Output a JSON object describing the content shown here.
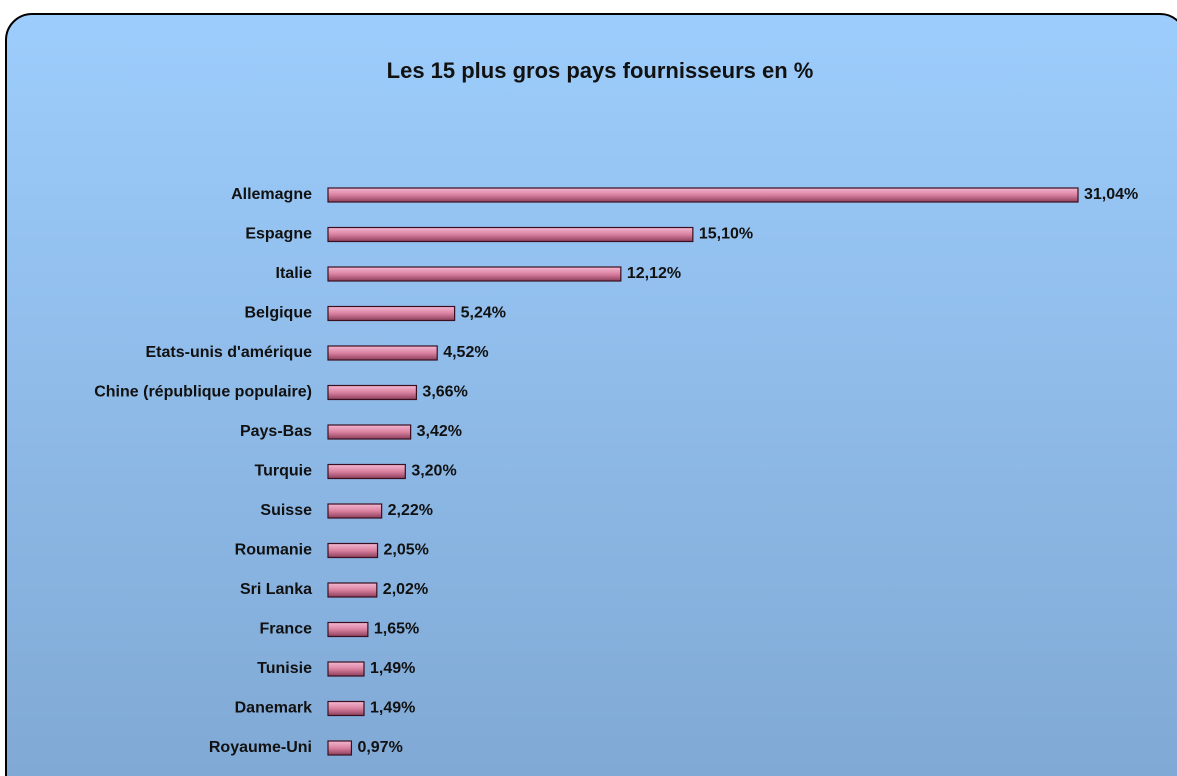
{
  "chart_data": {
    "type": "bar",
    "orientation": "horizontal",
    "title": "Les 15 plus gros pays fournisseurs en %",
    "categories": [
      "Allemagne",
      "Espagne",
      "Italie",
      "Belgique",
      "Etats-unis d'amérique",
      "Chine (république populaire)",
      "Pays-Bas",
      "Turquie",
      "Suisse",
      "Roumanie",
      "Sri Lanka",
      "France",
      "Tunisie",
      "Danemark",
      "Royaume-Uni"
    ],
    "values": [
      31.04,
      15.1,
      12.12,
      5.24,
      4.52,
      3.66,
      3.42,
      3.2,
      2.22,
      2.05,
      2.02,
      1.65,
      1.49,
      1.49,
      0.97
    ],
    "value_labels": [
      "31,04%",
      "15,10%",
      "12,12%",
      "5,24%",
      "4,52%",
      "3,66%",
      "3,42%",
      "3,20%",
      "2,22%",
      "2,05%",
      "2,02%",
      "1,65%",
      "1,49%",
      "1,49%",
      "0,97%"
    ],
    "color": "#d9819f"
  }
}
